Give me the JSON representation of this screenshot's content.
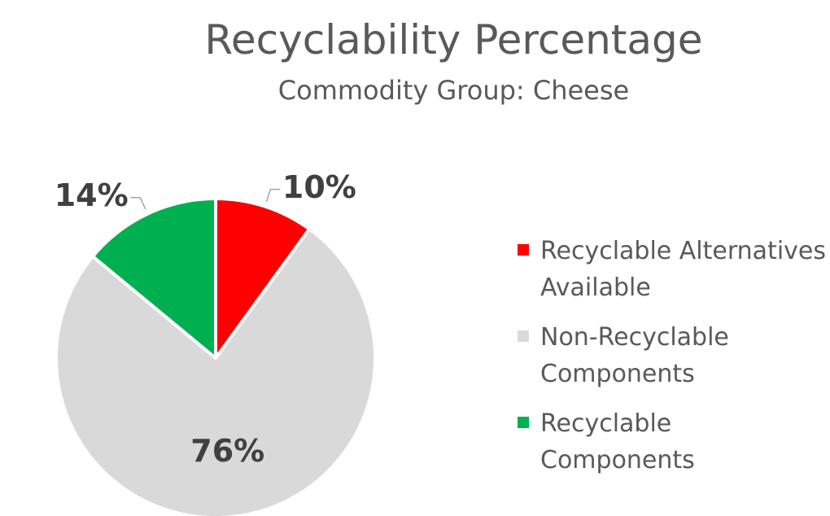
{
  "chart_data": {
    "type": "pie",
    "title": "Recyclability Percentage",
    "subtitle": "Commodity Group: Cheese",
    "categories": [
      "Recyclable Alternatives Available",
      "Non-Recyclable Components",
      "Recyclable Components"
    ],
    "values": [
      10,
      76,
      14
    ],
    "value_labels": [
      "10%",
      "76%",
      "14%"
    ],
    "colors": [
      "#ff0000",
      "#d9d9d9",
      "#00b050"
    ],
    "legend": "right"
  }
}
